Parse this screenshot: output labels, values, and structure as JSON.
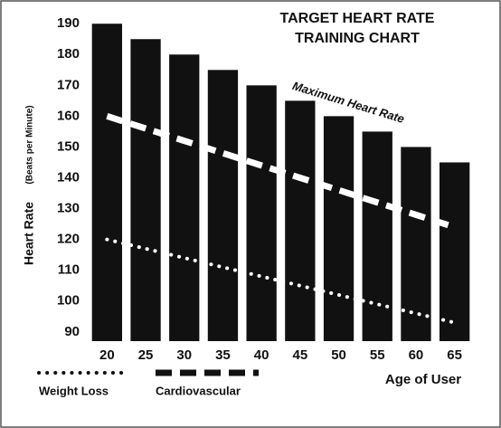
{
  "chart_data": {
    "type": "bar",
    "title_lines": [
      "TARGET HEART RATE",
      "TRAINING CHART"
    ],
    "y_label": "Heart Rate",
    "y_label_unit": "(Beats per Minute)",
    "x_label": "Age of User",
    "categories": [
      "20",
      "25",
      "30",
      "35",
      "40",
      "45",
      "50",
      "55",
      "60",
      "65"
    ],
    "series": [
      {
        "name": "Maximum Heart Rate",
        "style": "bar",
        "color": "#111111",
        "values": [
          190,
          185,
          180,
          175,
          170,
          165,
          160,
          155,
          150,
          145
        ]
      },
      {
        "name": "Cardiovascular",
        "style": "dashed",
        "color": "#ffffff",
        "values": [
          160,
          156,
          152,
          148,
          144,
          140,
          136,
          132,
          128,
          124
        ]
      },
      {
        "name": "Weight Loss",
        "style": "dotted",
        "color": "#ffffff",
        "values": [
          120,
          117,
          114,
          111,
          108,
          105,
          102,
          99,
          96,
          93
        ]
      }
    ],
    "ylim": [
      87,
      193
    ],
    "yticks": [
      90,
      100,
      110,
      120,
      130,
      140,
      150,
      160,
      170,
      180,
      190
    ]
  }
}
